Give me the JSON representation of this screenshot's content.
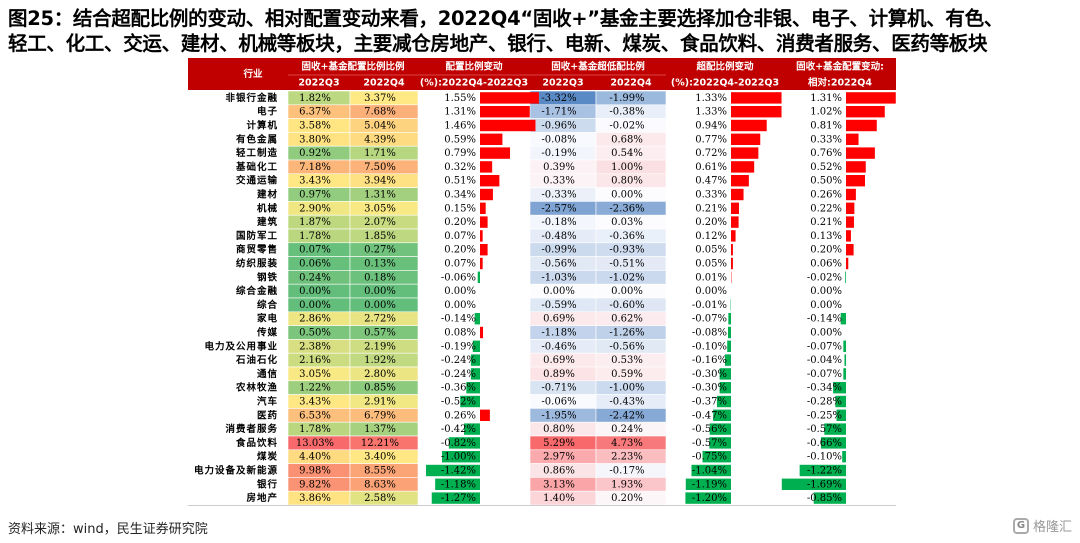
{
  "title": {
    "line1": "图25：结合超配比例的变动、相对配置变动来看，2022Q4“固收+”基金主要选择加仓非银、电子、计算机、有色、",
    "line2": "轻工、化工、交运、建材、机械等板块，主要减仓房地产、银行、电新、煤炭、食品饮料、消费者服务、医药等板块"
  },
  "source": "资料来源：wind，民生证券研究院",
  "watermark": "格隆汇",
  "colors": {
    "header_bg": "#c00000",
    "header_text": "#ffffff",
    "bar_pos": "#ff0000",
    "bar_neg": "#00b050"
  },
  "chart_data": {
    "type": "table",
    "headers": {
      "industry": "行业",
      "group_alloc": "固收+基金配置比例比例",
      "group_over": "固收+基金超低配比例",
      "alloc_change": "配置比例变动(%):2022Q4-2022Q3",
      "over_change": "超配比例变动(%):2022Q4-2022Q3",
      "rel_change": "固收+基金配置变动:相对:2022Q4",
      "q3": "2022Q3",
      "q4": "2022Q4"
    },
    "columns": [
      "行业",
      "配置比例2022Q3",
      "配置比例2022Q4",
      "配置比例变动",
      "超低配比例2022Q3",
      "超低配比例2022Q4",
      "超配比例变动",
      "相对配置变动"
    ],
    "rows": [
      {
        "name": "非银行金融",
        "alloc_q3": "1.82%",
        "alloc_q4": "3.37%",
        "alloc_chg": 1.55,
        "over_q3": "-3.32%",
        "over_q4": "-1.99%",
        "over_chg": 1.33,
        "rel_chg": 1.31
      },
      {
        "name": "电子",
        "alloc_q3": "6.37%",
        "alloc_q4": "7.68%",
        "alloc_chg": 1.31,
        "over_q3": "-1.71%",
        "over_q4": "-0.38%",
        "over_chg": 1.33,
        "rel_chg": 1.02
      },
      {
        "name": "计算机",
        "alloc_q3": "3.58%",
        "alloc_q4": "5.04%",
        "alloc_chg": 1.46,
        "over_q3": "-0.96%",
        "over_q4": "-0.02%",
        "over_chg": 0.94,
        "rel_chg": 0.81
      },
      {
        "name": "有色金属",
        "alloc_q3": "3.80%",
        "alloc_q4": "4.39%",
        "alloc_chg": 0.59,
        "over_q3": "-0.08%",
        "over_q4": "0.68%",
        "over_chg": 0.77,
        "rel_chg": 0.33
      },
      {
        "name": "轻工制造",
        "alloc_q3": "0.92%",
        "alloc_q4": "1.71%",
        "alloc_chg": 0.79,
        "over_q3": "-0.19%",
        "over_q4": "0.54%",
        "over_chg": 0.72,
        "rel_chg": 0.76
      },
      {
        "name": "基础化工",
        "alloc_q3": "7.18%",
        "alloc_q4": "7.50%",
        "alloc_chg": 0.32,
        "over_q3": "0.39%",
        "over_q4": "1.00%",
        "over_chg": 0.61,
        "rel_chg": 0.52
      },
      {
        "name": "交通运输",
        "alloc_q3": "3.43%",
        "alloc_q4": "3.94%",
        "alloc_chg": 0.51,
        "over_q3": "0.33%",
        "over_q4": "0.80%",
        "over_chg": 0.47,
        "rel_chg": 0.5
      },
      {
        "name": "建材",
        "alloc_q3": "0.97%",
        "alloc_q4": "1.31%",
        "alloc_chg": 0.34,
        "over_q3": "-0.33%",
        "over_q4": "0.00%",
        "over_chg": 0.33,
        "rel_chg": 0.26
      },
      {
        "name": "机械",
        "alloc_q3": "2.90%",
        "alloc_q4": "3.05%",
        "alloc_chg": 0.15,
        "over_q3": "-2.57%",
        "over_q4": "-2.36%",
        "over_chg": 0.21,
        "rel_chg": 0.22
      },
      {
        "name": "建筑",
        "alloc_q3": "1.87%",
        "alloc_q4": "2.07%",
        "alloc_chg": 0.2,
        "over_q3": "-0.18%",
        "over_q4": "0.03%",
        "over_chg": 0.2,
        "rel_chg": 0.21
      },
      {
        "name": "国防军工",
        "alloc_q3": "1.78%",
        "alloc_q4": "1.85%",
        "alloc_chg": 0.07,
        "over_q3": "-0.48%",
        "over_q4": "-0.36%",
        "over_chg": 0.12,
        "rel_chg": 0.13
      },
      {
        "name": "商贸零售",
        "alloc_q3": "0.07%",
        "alloc_q4": "0.27%",
        "alloc_chg": 0.2,
        "over_q3": "-0.99%",
        "over_q4": "-0.93%",
        "over_chg": 0.05,
        "rel_chg": 0.2
      },
      {
        "name": "纺织服装",
        "alloc_q3": "0.06%",
        "alloc_q4": "0.13%",
        "alloc_chg": 0.07,
        "over_q3": "-0.56%",
        "over_q4": "-0.51%",
        "over_chg": 0.05,
        "rel_chg": 0.06
      },
      {
        "name": "钢铁",
        "alloc_q3": "0.24%",
        "alloc_q4": "0.18%",
        "alloc_chg": -0.06,
        "over_q3": "-1.03%",
        "over_q4": "-1.02%",
        "over_chg": 0.01,
        "rel_chg": -0.02
      },
      {
        "name": "综合金融",
        "alloc_q3": "0.00%",
        "alloc_q4": "0.00%",
        "alloc_chg": 0.0,
        "over_q3": "0.00%",
        "over_q4": "0.00%",
        "over_chg": 0.0,
        "rel_chg": 0.0
      },
      {
        "name": "综合",
        "alloc_q3": "0.00%",
        "alloc_q4": "0.00%",
        "alloc_chg": 0.0,
        "over_q3": "-0.59%",
        "over_q4": "-0.60%",
        "over_chg": -0.01,
        "rel_chg": 0.0
      },
      {
        "name": "家电",
        "alloc_q3": "2.86%",
        "alloc_q4": "2.72%",
        "alloc_chg": -0.14,
        "over_q3": "0.69%",
        "over_q4": "0.62%",
        "over_chg": -0.07,
        "rel_chg": -0.14
      },
      {
        "name": "传媒",
        "alloc_q3": "0.50%",
        "alloc_q4": "0.57%",
        "alloc_chg": 0.08,
        "over_q3": "-1.18%",
        "over_q4": "-1.26%",
        "over_chg": -0.08,
        "rel_chg": 0.0
      },
      {
        "name": "电力及公用事业",
        "alloc_q3": "2.38%",
        "alloc_q4": "2.19%",
        "alloc_chg": -0.19,
        "over_q3": "-0.46%",
        "over_q4": "-0.56%",
        "over_chg": -0.1,
        "rel_chg": -0.07
      },
      {
        "name": "石油石化",
        "alloc_q3": "2.16%",
        "alloc_q4": "1.92%",
        "alloc_chg": -0.24,
        "over_q3": "0.69%",
        "over_q4": "0.53%",
        "over_chg": -0.16,
        "rel_chg": -0.04
      },
      {
        "name": "通信",
        "alloc_q3": "3.05%",
        "alloc_q4": "2.80%",
        "alloc_chg": -0.24,
        "over_q3": "0.89%",
        "over_q4": "0.59%",
        "over_chg": -0.3,
        "rel_chg": -0.07
      },
      {
        "name": "农林牧渔",
        "alloc_q3": "1.22%",
        "alloc_q4": "0.85%",
        "alloc_chg": -0.36,
        "over_q3": "-0.71%",
        "over_q4": "-1.00%",
        "over_chg": -0.3,
        "rel_chg": -0.34
      },
      {
        "name": "汽车",
        "alloc_q3": "3.43%",
        "alloc_q4": "2.91%",
        "alloc_chg": -0.52,
        "over_q3": "-0.06%",
        "over_q4": "-0.43%",
        "over_chg": -0.37,
        "rel_chg": -0.28
      },
      {
        "name": "医药",
        "alloc_q3": "6.53%",
        "alloc_q4": "6.79%",
        "alloc_chg": 0.26,
        "over_q3": "-1.95%",
        "over_q4": "-2.42%",
        "over_chg": -0.47,
        "rel_chg": -0.25
      },
      {
        "name": "消费者服务",
        "alloc_q3": "1.78%",
        "alloc_q4": "1.37%",
        "alloc_chg": -0.42,
        "over_q3": "0.80%",
        "over_q4": "0.24%",
        "over_chg": -0.56,
        "rel_chg": -0.57
      },
      {
        "name": "食品饮料",
        "alloc_q3": "13.03%",
        "alloc_q4": "12.21%",
        "alloc_chg": -0.82,
        "over_q3": "5.29%",
        "over_q4": "4.73%",
        "over_chg": -0.57,
        "rel_chg": -0.66
      },
      {
        "name": "煤炭",
        "alloc_q3": "4.40%",
        "alloc_q4": "3.40%",
        "alloc_chg": -1.0,
        "over_q3": "2.97%",
        "over_q4": "2.23%",
        "over_chg": -0.75,
        "rel_chg": -0.1
      },
      {
        "name": "电力设备及新能源",
        "alloc_q3": "9.98%",
        "alloc_q4": "8.55%",
        "alloc_chg": -1.42,
        "over_q3": "0.86%",
        "over_q4": "-0.17%",
        "over_chg": -1.04,
        "rel_chg": -1.22
      },
      {
        "name": "银行",
        "alloc_q3": "9.82%",
        "alloc_q4": "8.63%",
        "alloc_chg": -1.18,
        "over_q3": "3.13%",
        "over_q4": "1.93%",
        "over_chg": -1.19,
        "rel_chg": -1.69
      },
      {
        "name": "房地产",
        "alloc_q3": "3.86%",
        "alloc_q4": "2.58%",
        "alloc_chg": -1.27,
        "over_q3": "1.40%",
        "over_q4": "0.20%",
        "over_chg": -1.2,
        "rel_chg": -0.85
      }
    ]
  }
}
